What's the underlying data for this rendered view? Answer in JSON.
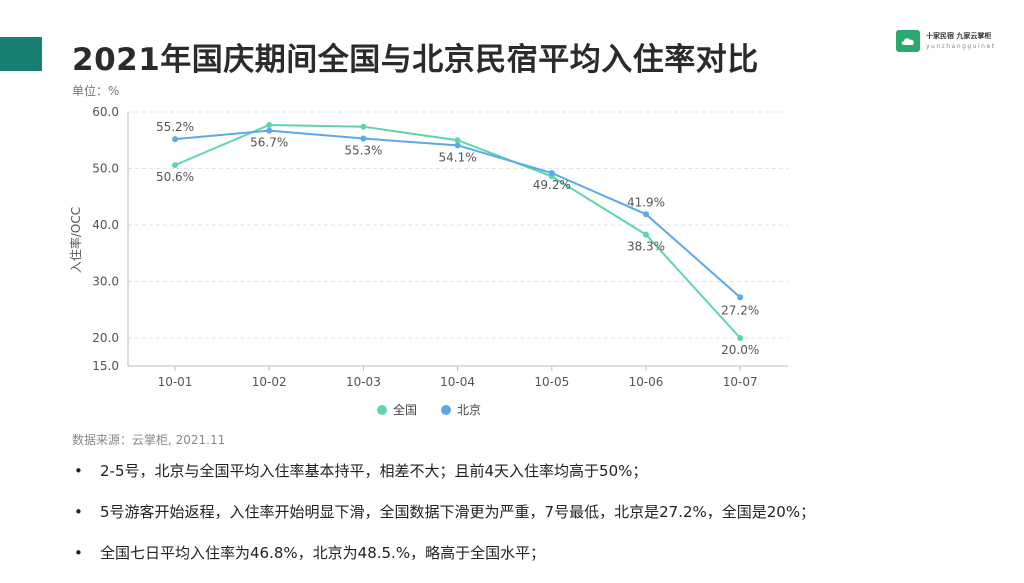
{
  "title": "2021年国庆期间全国与北京民宿平均入住率对比",
  "brand": {
    "name": "十家民宿 九家云掌柜",
    "url": "yunzhangguinet",
    "logo_icon": "cloud-icon"
  },
  "unit": "单位：%",
  "source": "数据来源：云掌柜, 2021.11",
  "bullets": [
    "2-5号，北京与全国平均入住率基本持平，相差不大；且前4天入住率均高于50%；",
    "5号游客开始返程，入住率开始明显下滑，全国数据下滑更为严重，7号最低，北京是27.2%，全国是20%；",
    "全国七日平均入住率为46.8%，北京为48.5.%，略高于全国水平；"
  ],
  "colors": {
    "accent": "#1a7f73",
    "national": "#5fd6a8",
    "beijing": "#5ba8ea"
  },
  "chart_data": {
    "type": "line",
    "categories": [
      "10-01",
      "10-02",
      "10-03",
      "10-04",
      "10-05",
      "10-06",
      "10-07"
    ],
    "series": [
      {
        "name": "全国",
        "values": [
          50.6,
          57.7,
          57.4,
          55.0,
          48.6,
          38.3,
          20.0
        ],
        "labels": [
          "50.6%",
          "",
          "",
          "",
          "",
          "38.3%",
          "20.0%"
        ]
      },
      {
        "name": "北京",
        "values": [
          55.2,
          56.7,
          55.3,
          54.1,
          49.2,
          41.9,
          27.2
        ],
        "labels": [
          "55.2%",
          "56.7%",
          "55.3%",
          "54.1%",
          "49.2%",
          "41.9%",
          "27.2%"
        ]
      }
    ],
    "ylabel": "入住率/OCC",
    "ylim": [
      15,
      60
    ],
    "yticks": [
      "15.0",
      "20.0",
      "30.0",
      "40.0",
      "50.0",
      "60.0"
    ],
    "grid": true,
    "legend_position": "bottom-center"
  }
}
